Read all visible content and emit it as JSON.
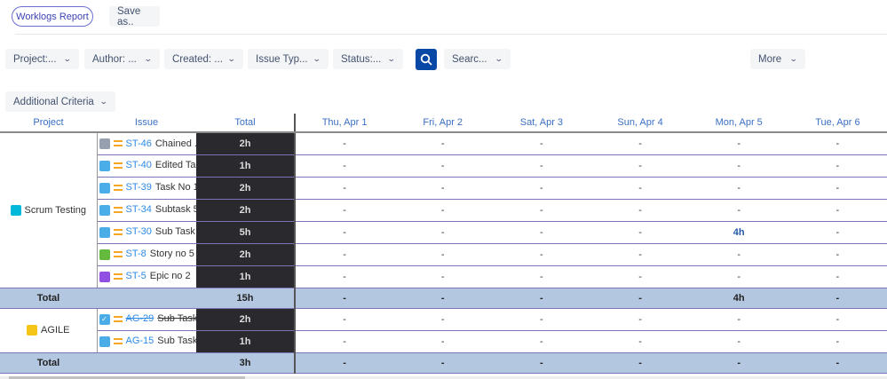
{
  "header": {
    "report_button": "Worklogs Report",
    "save_as": "Save as.."
  },
  "filters": [
    {
      "label": "Project:..."
    },
    {
      "label": "Author: ..."
    },
    {
      "label": "Created: ..."
    },
    {
      "label": "Issue Typ..."
    },
    {
      "label": "Status:..."
    }
  ],
  "search_filter": "Searc...",
  "more": "More",
  "additional_criteria": "Additional Criteria",
  "colors": {
    "accent": "#0747a6",
    "total_bg": "#2a292d",
    "sum_row": "#b3c7e0",
    "link": "#2d8ae5"
  },
  "table": {
    "columns": [
      "Project",
      "Issue",
      "Total",
      "Thu, Apr 1",
      "Fri, Apr 2",
      "Sat, Apr 3",
      "Sun, Apr 4",
      "Mon, Apr 5",
      "Tue, Apr 6"
    ],
    "groups": [
      {
        "project": "Scrum Testing",
        "project_icon_color": "#00b8d9",
        "rows": [
          {
            "type": "sub-task-icon",
            "type_color": "#97a0af",
            "key": "ST-46",
            "summary": "Chained ...",
            "total": "2h",
            "days": [
              "-",
              "-",
              "-",
              "-",
              "-",
              "-"
            ]
          },
          {
            "type": "subtask-icon",
            "type_color": "#4bade8",
            "key": "ST-40",
            "summary": "Edited Ta...",
            "total": "1h",
            "days": [
              "-",
              "-",
              "-",
              "-",
              "-",
              "-"
            ]
          },
          {
            "type": "subtask-icon",
            "type_color": "#4bade8",
            "key": "ST-39",
            "summary": "Task No 1",
            "total": "2h",
            "days": [
              "-",
              "-",
              "-",
              "-",
              "-",
              "-"
            ]
          },
          {
            "type": "subtask-icon",
            "type_color": "#4bade8",
            "key": "ST-34",
            "summary": "Subtask 5",
            "total": "2h",
            "days": [
              "-",
              "-",
              "-",
              "-",
              "-",
              "-"
            ]
          },
          {
            "type": "subtask-icon",
            "type_color": "#4bade8",
            "key": "ST-30",
            "summary": "Sub Task",
            "total": "5h",
            "days": [
              "-",
              "-",
              "-",
              "-",
              "4h",
              "-"
            ]
          },
          {
            "type": "story-icon",
            "type_color": "#63ba3c",
            "key": "ST-8",
            "summary": "Story no 5",
            "total": "2h",
            "days": [
              "-",
              "-",
              "-",
              "-",
              "-",
              "-"
            ]
          },
          {
            "type": "epic-icon",
            "type_color": "#904ee2",
            "key": "ST-5",
            "summary": "Epic no 2",
            "total": "1h",
            "days": [
              "-",
              "-",
              "-",
              "-",
              "-",
              "-"
            ]
          }
        ],
        "sum": {
          "label": "Total",
          "total": "15h",
          "days": [
            "-",
            "-",
            "-",
            "-",
            "4h",
            "-"
          ]
        }
      },
      {
        "project": "AGILE",
        "project_icon_color": "#f5c518",
        "rows": [
          {
            "type": "task-done-icon",
            "type_color": "#4bade8",
            "key": "AG-29",
            "summary": "Sub Task...",
            "total": "2h",
            "done": true,
            "days": [
              "-",
              "-",
              "-",
              "-",
              "-",
              "-"
            ]
          },
          {
            "type": "subtask-icon",
            "type_color": "#4bade8",
            "key": "AG-15",
            "summary": "Sub Task...",
            "total": "1h",
            "days": [
              "-",
              "-",
              "-",
              "-",
              "-",
              "-"
            ]
          }
        ],
        "sum": {
          "label": "Total",
          "total": "3h",
          "days": [
            "-",
            "-",
            "-",
            "-",
            "-",
            "-"
          ]
        }
      }
    ]
  }
}
